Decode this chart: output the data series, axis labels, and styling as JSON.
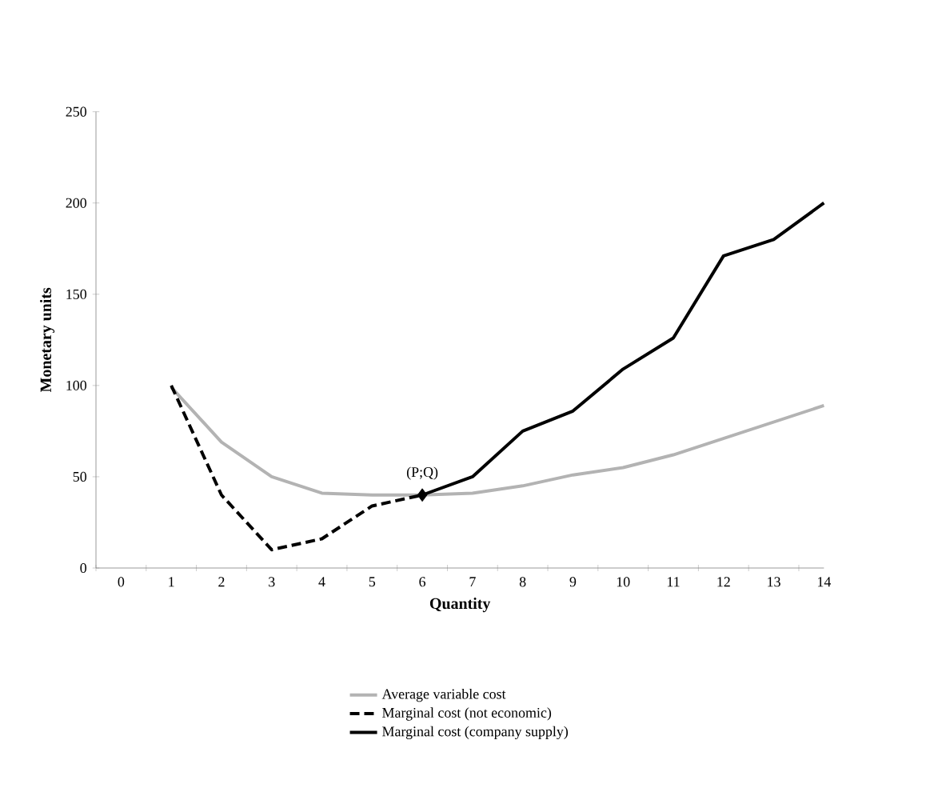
{
  "chart_data": {
    "type": "line",
    "xlabel": "Quantity",
    "ylabel": "Monetary units",
    "categories": [
      "0",
      "1",
      "2",
      "3",
      "4",
      "5",
      "6",
      "7",
      "8",
      "9",
      "10",
      "11",
      "12",
      "13",
      "14"
    ],
    "ylim": [
      0,
      250
    ],
    "yticks": [
      0,
      50,
      100,
      150,
      200,
      250
    ],
    "grid": false,
    "legend": "bottom",
    "marker": "none",
    "series": [
      {
        "name": "Average variable cost",
        "color": "#b3b3b3",
        "line_style": "solid",
        "values": [
          null,
          99,
          69,
          50,
          41,
          40,
          40,
          41,
          45,
          51,
          55,
          62,
          71,
          80,
          89
        ]
      },
      {
        "name": "Marginal cost (not economic)",
        "color": "#000000",
        "line_style": "dashed",
        "values": [
          null,
          100,
          40,
          10,
          16,
          34,
          40,
          null,
          null,
          null,
          null,
          null,
          null,
          null,
          null
        ]
      },
      {
        "name": "Marginal cost (company supply)",
        "color": "#000000",
        "line_style": "solid",
        "values": [
          null,
          null,
          null,
          null,
          null,
          null,
          40,
          50,
          75,
          86,
          109,
          126,
          171,
          180,
          200
        ]
      },
      {
        "type": "scatter",
        "color": "#000000",
        "marker": "diamond",
        "x": [
          "6"
        ],
        "values": [
          40
        ]
      }
    ],
    "annotations": [
      {
        "text": "(P;Q)",
        "x": "6",
        "y": 40
      }
    ]
  }
}
